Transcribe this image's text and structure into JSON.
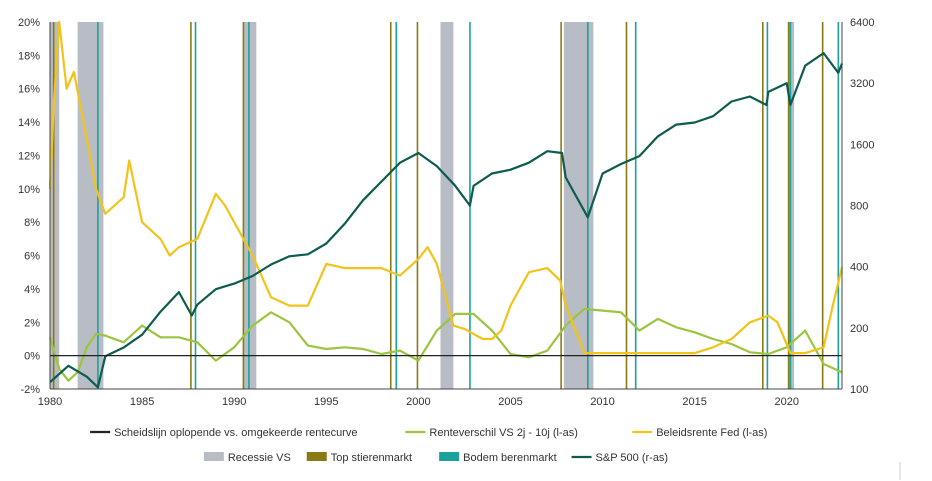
{
  "chart_data": {
    "type": "line",
    "title": "",
    "x_range": [
      1980,
      2023
    ],
    "left_axis": {
      "ticks": [
        "20%",
        "18%",
        "16%",
        "14%",
        "12%",
        "10%",
        "8%",
        "6%",
        "4%",
        "2%",
        "0%",
        "-2%"
      ],
      "range": [
        -2,
        20
      ],
      "unit": "%"
    },
    "right_axis": {
      "ticks": [
        "6400",
        "3200",
        "1600",
        "800",
        "400",
        "200",
        "100"
      ],
      "range": [
        100,
        6400
      ],
      "scale": "log"
    },
    "x_ticks": [
      "1980",
      "1985",
      "1990",
      "1995",
      "2000",
      "2005",
      "2010",
      "2015",
      "2020"
    ],
    "recessions": [
      [
        1980.0,
        1980.5
      ],
      [
        1981.5,
        1982.9
      ],
      [
        1990.5,
        1991.2
      ],
      [
        2001.2,
        2001.9
      ],
      [
        2007.9,
        2009.5
      ],
      [
        2020.1,
        2020.4
      ]
    ],
    "bull_market_tops": [
      1980.2,
      1987.65,
      1990.5,
      1998.5,
      1999.95,
      2007.75,
      2011.3,
      2018.7,
      2020.1,
      2021.95
    ],
    "bear_market_bottoms": [
      1982.6,
      1987.9,
      1990.8,
      1998.8,
      2002.8,
      2009.2,
      2011.8,
      2018.95,
      2020.2,
      2022.8
    ],
    "series": [
      {
        "name": "Renteverschil VS 2j - 10j (l-as)",
        "axis": "left",
        "color": "#9ac53f",
        "x": [
          1980,
          1980.5,
          1981,
          1981.5,
          1982,
          1982.5,
          1983,
          1984,
          1985,
          1986,
          1987,
          1988,
          1989,
          1990,
          1991,
          1992,
          1993,
          1994,
          1995,
          1996,
          1997,
          1998,
          1999,
          2000,
          2001,
          2002,
          2003,
          2004,
          2005,
          2006,
          2007,
          2008,
          2009,
          2010,
          2011,
          2012,
          2013,
          2014,
          2015,
          2016,
          2017,
          2018,
          2019,
          2020,
          2021,
          2022,
          2023
        ],
        "values": [
          1.1,
          -0.8,
          -1.5,
          -1.0,
          0.5,
          1.3,
          1.2,
          0.8,
          1.8,
          1.1,
          1.1,
          0.8,
          -0.3,
          0.5,
          1.8,
          2.6,
          2.0,
          0.6,
          0.4,
          0.5,
          0.4,
          0.1,
          0.3,
          -0.3,
          1.5,
          2.5,
          2.5,
          1.5,
          0.1,
          -0.1,
          0.3,
          1.8,
          2.8,
          2.7,
          2.6,
          1.5,
          2.2,
          1.7,
          1.4,
          1.0,
          0.7,
          0.2,
          0.1,
          0.5,
          1.5,
          -0.5,
          -1.0
        ]
      },
      {
        "name": "Beleidsrente Fed (l-as)",
        "axis": "left",
        "color": "#f2c31b",
        "x": [
          1980,
          1980.2,
          1980.5,
          1980.9,
          1981.3,
          1982,
          1982.5,
          1983,
          1984,
          1984.3,
          1985,
          1986,
          1986.5,
          1987,
          1988,
          1989,
          1989.5,
          1990,
          1991,
          1992,
          1993,
          1994,
          1995,
          1996,
          1998,
          1999,
          2000,
          2000.5,
          2001,
          2001.9,
          2002.5,
          2003.5,
          2004,
          2004.5,
          2005,
          2006,
          2007,
          2007.7,
          2008,
          2008.9,
          2009,
          2015,
          2016,
          2017,
          2018,
          2019,
          2019.5,
          2020.2,
          2021,
          2022,
          2022.5,
          2023
        ],
        "values": [
          10,
          15,
          20,
          16,
          17,
          13,
          10,
          8.5,
          9.5,
          11.7,
          8,
          7,
          6,
          6.5,
          7,
          9.7,
          9,
          8,
          6,
          3.5,
          3,
          3,
          5.5,
          5.25,
          5.25,
          4.8,
          5.8,
          6.5,
          5.5,
          1.8,
          1.6,
          1.0,
          1.0,
          1.5,
          3.0,
          5.0,
          5.25,
          4.5,
          3,
          0.5,
          0.15,
          0.15,
          0.5,
          1.0,
          2.0,
          2.4,
          2.0,
          0.15,
          0.15,
          0.5,
          3.0,
          5.3
        ]
      },
      {
        "name": "S&P 500 (r-as)",
        "axis": "right",
        "color": "#0d5c4f",
        "x": [
          1980,
          1981,
          1982,
          1982.6,
          1983,
          1984,
          1985,
          1986,
          1987,
          1987.7,
          1988,
          1989,
          1990,
          1991,
          1992,
          1993,
          1994,
          1995,
          1996,
          1997,
          1998,
          1999,
          2000,
          2001,
          2002,
          2002.8,
          2003,
          2004,
          2005,
          2006,
          2007,
          2007.8,
          2008,
          2009.2,
          2010,
          2011,
          2012,
          2013,
          2014,
          2015,
          2016,
          2017,
          2018,
          2018.9,
          2019,
          2020,
          2020.2,
          2021,
          2022,
          2022.8,
          2023
        ],
        "values": [
          108,
          130,
          115,
          102,
          145,
          160,
          185,
          240,
          300,
          230,
          260,
          310,
          330,
          360,
          410,
          450,
          460,
          520,
          650,
          850,
          1050,
          1300,
          1450,
          1250,
          1000,
          800,
          1000,
          1150,
          1200,
          1300,
          1480,
          1450,
          1100,
          700,
          1150,
          1280,
          1400,
          1750,
          2000,
          2050,
          2200,
          2600,
          2750,
          2500,
          2900,
          3200,
          2500,
          3900,
          4500,
          3600,
          4000
        ]
      }
    ],
    "zero_line": true
  },
  "legend": {
    "row1": [
      {
        "name": "Scheidslijn oplopende vs. omgekeerde rentecurve",
        "type": "line",
        "color": "#222222"
      },
      {
        "name": "Renteverschil VS 2j - 10j (l-as)",
        "type": "line",
        "color": "#9ac53f"
      },
      {
        "name": "Beleidsrente Fed (l-as)",
        "type": "line",
        "color": "#f2c31b"
      }
    ],
    "row2": [
      {
        "name": "Recessie VS",
        "type": "box",
        "color": "#b8bcc4"
      },
      {
        "name": "Top stierenmarkt",
        "type": "box",
        "color": "#8a7a14"
      },
      {
        "name": "Bodem berenmarkt",
        "type": "box",
        "color": "#1aa39a"
      },
      {
        "name": "S&P 500 (r-as)",
        "type": "line",
        "color": "#0d5c4f"
      }
    ]
  }
}
